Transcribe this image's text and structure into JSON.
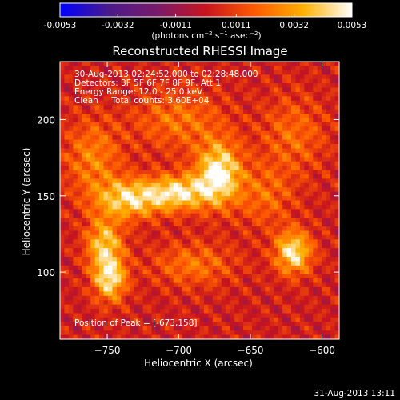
{
  "colorbar": {
    "tick_labels": [
      "-0.0053",
      "-0.0032",
      "-0.0011",
      "0.0011",
      "0.0032",
      "0.0053"
    ],
    "ticks": [
      -0.0053,
      -0.0032,
      -0.0011,
      0.0011,
      0.0032,
      0.0053
    ],
    "range": [
      -0.0053,
      0.0053
    ],
    "unit_base": "(photons cm",
    "unit_exp1": "−2",
    "unit_mid": " s",
    "unit_exp2": "−1",
    "unit_mid2": " asec",
    "unit_exp3": "−2",
    "unit_end": ")"
  },
  "footer": {
    "timestamp": "31-Aug-2013 13:11"
  },
  "chart_data": {
    "type": "heatmap",
    "title": "Reconstructed RHESSI Image",
    "xlabel": "Heliocentric X (arcsec)",
    "ylabel": "Heliocentric Y (arcsec)",
    "xlim": [
      -783,
      -588
    ],
    "ylim": [
      56,
      238
    ],
    "xticks": [
      -750,
      -700,
      -650,
      -600
    ],
    "xtick_labels": [
      "−750",
      "−700",
      "−650",
      "−600"
    ],
    "yticks": [
      100,
      150,
      200
    ],
    "ytick_labels": [
      "100",
      "150",
      "200"
    ],
    "annotations": [
      "30-Aug-2013 02:24:52.000 to 02:28:48.000",
      "Detectors: 3F 5F 6F 7F 8F 9F, Att 1",
      "Energy Range: 12.0 - 25.0 keV",
      "Clean     Total counts: 3.60E+04"
    ],
    "peak_label": "Position of Peak = [-673,158]",
    "peak": [
      -673,
      158
    ],
    "colormap": [
      "#0000ff",
      "#4a1a8c",
      "#7a1a6a",
      "#c8141e",
      "#ff5a00",
      "#ffb000",
      "#ffffff"
    ],
    "sources": [
      {
        "x": -672,
        "y": 165,
        "sx": 11,
        "sy": 14,
        "amp": 1.0
      },
      {
        "x": -700,
        "y": 152,
        "sx": 16,
        "sy": 8,
        "amp": 0.85
      },
      {
        "x": -735,
        "y": 148,
        "sx": 16,
        "sy": 9,
        "amp": 0.8
      },
      {
        "x": -752,
        "y": 118,
        "sx": 9,
        "sy": 12,
        "amp": 0.75
      },
      {
        "x": -748,
        "y": 95,
        "sx": 8,
        "sy": 10,
        "amp": 0.85
      },
      {
        "x": -620,
        "y": 113,
        "sx": 9,
        "sy": 10,
        "amp": 0.9
      },
      {
        "x": -640,
        "y": 150,
        "sx": 14,
        "sy": 14,
        "amp": 0.35
      },
      {
        "x": -760,
        "y": 175,
        "sx": 14,
        "sy": 18,
        "amp": 0.45
      },
      {
        "x": -700,
        "y": 200,
        "sx": 22,
        "sy": 14,
        "amp": 0.4
      },
      {
        "x": -620,
        "y": 190,
        "sx": 16,
        "sy": 18,
        "amp": 0.35
      },
      {
        "x": -690,
        "y": 105,
        "sx": 20,
        "sy": 10,
        "amp": 0.4
      }
    ]
  }
}
